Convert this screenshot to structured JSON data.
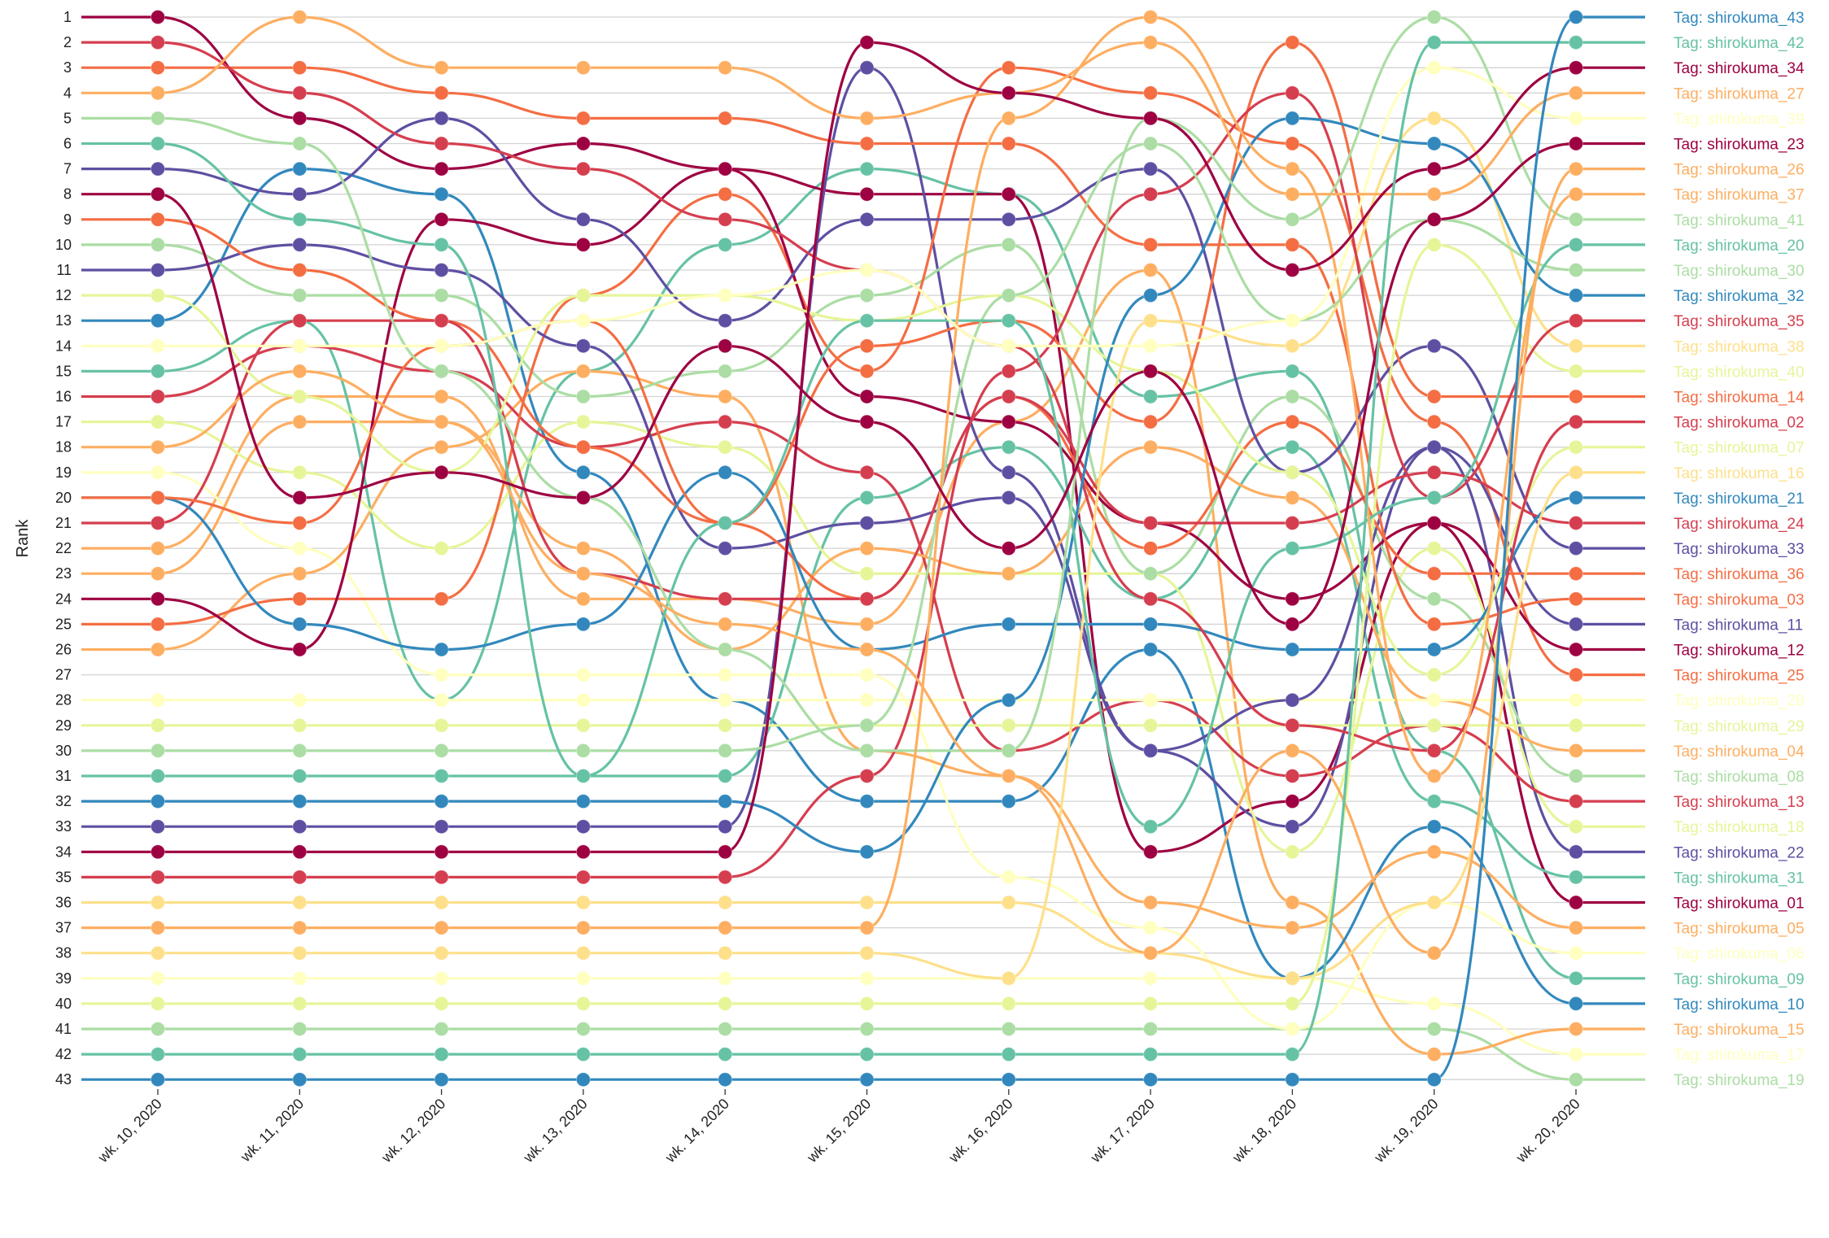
{
  "chart_data": {
    "type": "line",
    "subtype": "bump",
    "xlabel": "",
    "ylabel": "Rank",
    "ylim": [
      1,
      43
    ],
    "y_inverted": true,
    "grid": "horizontal",
    "legend_position": "right, at end of each line",
    "categories": [
      "wk. 10, 2020",
      "wk. 11, 2020",
      "wk. 12, 2020",
      "wk. 13, 2020",
      "wk. 14, 2020",
      "wk. 15, 2020",
      "wk. 16, 2020",
      "wk. 17, 2020",
      "wk. 18, 2020",
      "wk. 19, 2020",
      "wk. 20, 2020"
    ],
    "y_ticks": [
      1,
      2,
      3,
      4,
      5,
      6,
      7,
      8,
      9,
      10,
      11,
      12,
      13,
      14,
      15,
      16,
      17,
      18,
      19,
      20,
      21,
      22,
      23,
      24,
      25,
      26,
      27,
      28,
      29,
      30,
      31,
      32,
      33,
      34,
      35,
      36,
      37,
      38,
      39,
      40,
      41,
      42,
      43
    ],
    "series": [
      {
        "name": "Tag: shirokuma_43",
        "color": "#3288bd",
        "values": [
          43,
          43,
          43,
          43,
          43,
          43,
          43,
          43,
          43,
          43,
          1
        ]
      },
      {
        "name": "Tag: shirokuma_42",
        "color": "#66c2a5",
        "values": [
          42,
          42,
          42,
          42,
          42,
          42,
          42,
          42,
          42,
          2,
          2
        ]
      },
      {
        "name": "Tag: shirokuma_34",
        "color": "#9e0142",
        "values": [
          34,
          34,
          34,
          34,
          34,
          2,
          4,
          5,
          11,
          7,
          3
        ]
      },
      {
        "name": "Tag: shirokuma_27",
        "color": "#fdae61",
        "values": [
          4,
          1,
          3,
          3,
          3,
          5,
          4,
          2,
          8,
          8,
          4
        ]
      },
      {
        "name": "Tag: shirokuma_39",
        "color": "#ffffbf",
        "values": [
          14,
          14,
          14,
          13,
          12,
          11,
          14,
          14,
          13,
          3,
          5
        ]
      },
      {
        "name": "Tag: shirokuma_23",
        "color": "#9e0142",
        "values": [
          8,
          20,
          19,
          20,
          14,
          17,
          22,
          15,
          25,
          9,
          6
        ]
      },
      {
        "name": "Tag: shirokuma_26",
        "color": "#fdae61",
        "values": [
          18,
          15,
          17,
          23,
          25,
          26,
          31,
          38,
          30,
          38,
          7
        ]
      },
      {
        "name": "Tag: shirokuma_37",
        "color": "#fdae61",
        "values": [
          37,
          37,
          37,
          37,
          37,
          37,
          5,
          1,
          7,
          31,
          8
        ]
      },
      {
        "name": "Tag: shirokuma_41",
        "color": "#abdda4",
        "values": [
          5,
          6,
          15,
          20,
          26,
          30,
          30,
          5,
          9,
          1,
          9
        ]
      },
      {
        "name": "Tag: shirokuma_20",
        "color": "#66c2a5",
        "values": [
          6,
          9,
          10,
          31,
          21,
          13,
          13,
          33,
          22,
          20,
          10
        ]
      },
      {
        "name": "Tag: shirokuma_30",
        "color": "#abdda4",
        "values": [
          30,
          30,
          30,
          30,
          30,
          29,
          12,
          6,
          13,
          9,
          11
        ]
      },
      {
        "name": "Tag: shirokuma_32",
        "color": "#3288bd",
        "values": [
          32,
          32,
          32,
          32,
          32,
          34,
          28,
          12,
          5,
          6,
          12
        ]
      },
      {
        "name": "Tag: shirokuma_35",
        "color": "#d53e4f",
        "values": [
          35,
          35,
          35,
          35,
          35,
          31,
          15,
          8,
          4,
          20,
          13
        ]
      },
      {
        "name": "Tag: shirokuma_38",
        "color": "#fee08b",
        "values": [
          38,
          38,
          38,
          38,
          38,
          38,
          39,
          13,
          14,
          5,
          14
        ]
      },
      {
        "name": "Tag: shirokuma_40",
        "color": "#e6f598",
        "values": [
          40,
          40,
          40,
          40,
          40,
          40,
          40,
          40,
          40,
          10,
          15
        ]
      },
      {
        "name": "Tag: shirokuma_14",
        "color": "#f46d43",
        "values": [
          20,
          21,
          14,
          13,
          21,
          14,
          13,
          17,
          2,
          16,
          16
        ]
      },
      {
        "name": "Tag: shirokuma_02",
        "color": "#d53e4f",
        "values": [
          2,
          4,
          6,
          7,
          9,
          11,
          14,
          24,
          29,
          30,
          17
        ]
      },
      {
        "name": "Tag: shirokuma_07",
        "color": "#e6f598",
        "values": [
          12,
          16,
          19,
          12,
          12,
          13,
          12,
          15,
          19,
          27,
          18
        ]
      },
      {
        "name": "Tag: shirokuma_16",
        "color": "#fee08b",
        "values": [
          36,
          36,
          36,
          36,
          36,
          36,
          36,
          38,
          39,
          36,
          19
        ]
      },
      {
        "name": "Tag: shirokuma_21",
        "color": "#3288bd",
        "values": [
          20,
          25,
          26,
          25,
          19,
          26,
          25,
          25,
          26,
          26,
          20
        ]
      },
      {
        "name": "Tag: shirokuma_24",
        "color": "#d53e4f",
        "values": [
          21,
          13,
          13,
          23,
          24,
          24,
          16,
          21,
          21,
          19,
          21
        ]
      },
      {
        "name": "Tag: shirokuma_33",
        "color": "#5e4fa2",
        "values": [
          7,
          8,
          5,
          9,
          13,
          9,
          9,
          7,
          19,
          14,
          22
        ]
      },
      {
        "name": "Tag: shirokuma_36",
        "color": "#f46d43",
        "values": [
          9,
          11,
          13,
          18,
          21,
          24,
          16,
          22,
          17,
          23,
          23
        ]
      },
      {
        "name": "Tag: shirokuma_03",
        "color": "#f46d43",
        "values": [
          3,
          3,
          4,
          5,
          5,
          6,
          6,
          10,
          10,
          25,
          24
        ]
      },
      {
        "name": "Tag: shirokuma_11",
        "color": "#5e4fa2",
        "values": [
          11,
          10,
          11,
          14,
          22,
          21,
          20,
          30,
          28,
          18,
          25
        ]
      },
      {
        "name": "Tag: shirokuma_12",
        "color": "#9e0142",
        "values": [
          24,
          26,
          9,
          10,
          7,
          16,
          17,
          21,
          24,
          21,
          26
        ]
      },
      {
        "name": "Tag: shirokuma_25",
        "color": "#f46d43",
        "values": [
          25,
          24,
          24,
          12,
          8,
          15,
          3,
          4,
          6,
          17,
          27
        ]
      },
      {
        "name": "Tag: shirokuma_28",
        "color": "#ffffbf",
        "values": [
          28,
          28,
          28,
          28,
          28,
          28,
          28,
          28,
          28,
          28,
          28
        ]
      },
      {
        "name": "Tag: shirokuma_29",
        "color": "#e6f598",
        "values": [
          29,
          29,
          29,
          29,
          29,
          29,
          29,
          29,
          29,
          29,
          29
        ]
      },
      {
        "name": "Tag: shirokuma_04",
        "color": "#fdae61",
        "values": [
          23,
          17,
          17,
          22,
          26,
          22,
          23,
          18,
          20,
          28,
          30
        ]
      },
      {
        "name": "Tag: shirokuma_08",
        "color": "#abdda4",
        "values": [
          10,
          12,
          12,
          16,
          15,
          12,
          10,
          23,
          16,
          24,
          31
        ]
      },
      {
        "name": "Tag: shirokuma_13",
        "color": "#d53e4f",
        "values": [
          16,
          14,
          15,
          18,
          17,
          19,
          30,
          28,
          31,
          29,
          32
        ]
      },
      {
        "name": "Tag: shirokuma_18",
        "color": "#e6f598",
        "values": [
          17,
          19,
          22,
          17,
          18,
          23,
          23,
          23,
          34,
          22,
          33
        ]
      },
      {
        "name": "Tag: shirokuma_22",
        "color": "#5e4fa2",
        "values": [
          33,
          33,
          33,
          33,
          33,
          3,
          19,
          30,
          33,
          18,
          34
        ]
      },
      {
        "name": "Tag: shirokuma_31",
        "color": "#66c2a5",
        "values": [
          31,
          31,
          31,
          31,
          31,
          20,
          18,
          24,
          18,
          32,
          35
        ]
      },
      {
        "name": "Tag: shirokuma_01",
        "color": "#9e0142",
        "values": [
          1,
          5,
          7,
          6,
          7,
          8,
          8,
          34,
          32,
          21,
          36
        ]
      },
      {
        "name": "Tag: shirokuma_05",
        "color": "#fdae61",
        "values": [
          26,
          23,
          18,
          15,
          16,
          30,
          31,
          36,
          37,
          34,
          37
        ]
      },
      {
        "name": "Tag: shirokuma_06",
        "color": "#ffffbf",
        "values": [
          19,
          22,
          27,
          27,
          27,
          27,
          35,
          37,
          41,
          36,
          38
        ]
      },
      {
        "name": "Tag: shirokuma_09",
        "color": "#66c2a5",
        "values": [
          15,
          13,
          28,
          15,
          10,
          7,
          8,
          16,
          15,
          30,
          39
        ]
      },
      {
        "name": "Tag: shirokuma_10",
        "color": "#3288bd",
        "values": [
          13,
          7,
          8,
          19,
          28,
          32,
          32,
          26,
          39,
          33,
          40
        ]
      },
      {
        "name": "Tag: shirokuma_15",
        "color": "#fdae61",
        "values": [
          22,
          16,
          16,
          24,
          24,
          25,
          17,
          11,
          36,
          42,
          41
        ]
      },
      {
        "name": "Tag: shirokuma_17",
        "color": "#ffffbf",
        "values": [
          39,
          39,
          39,
          39,
          39,
          39,
          39,
          39,
          39,
          40,
          42
        ]
      },
      {
        "name": "Tag: shirokuma_19",
        "color": "#abdda4",
        "values": [
          41,
          41,
          41,
          41,
          41,
          41,
          41,
          41,
          41,
          41,
          43
        ]
      }
    ]
  }
}
